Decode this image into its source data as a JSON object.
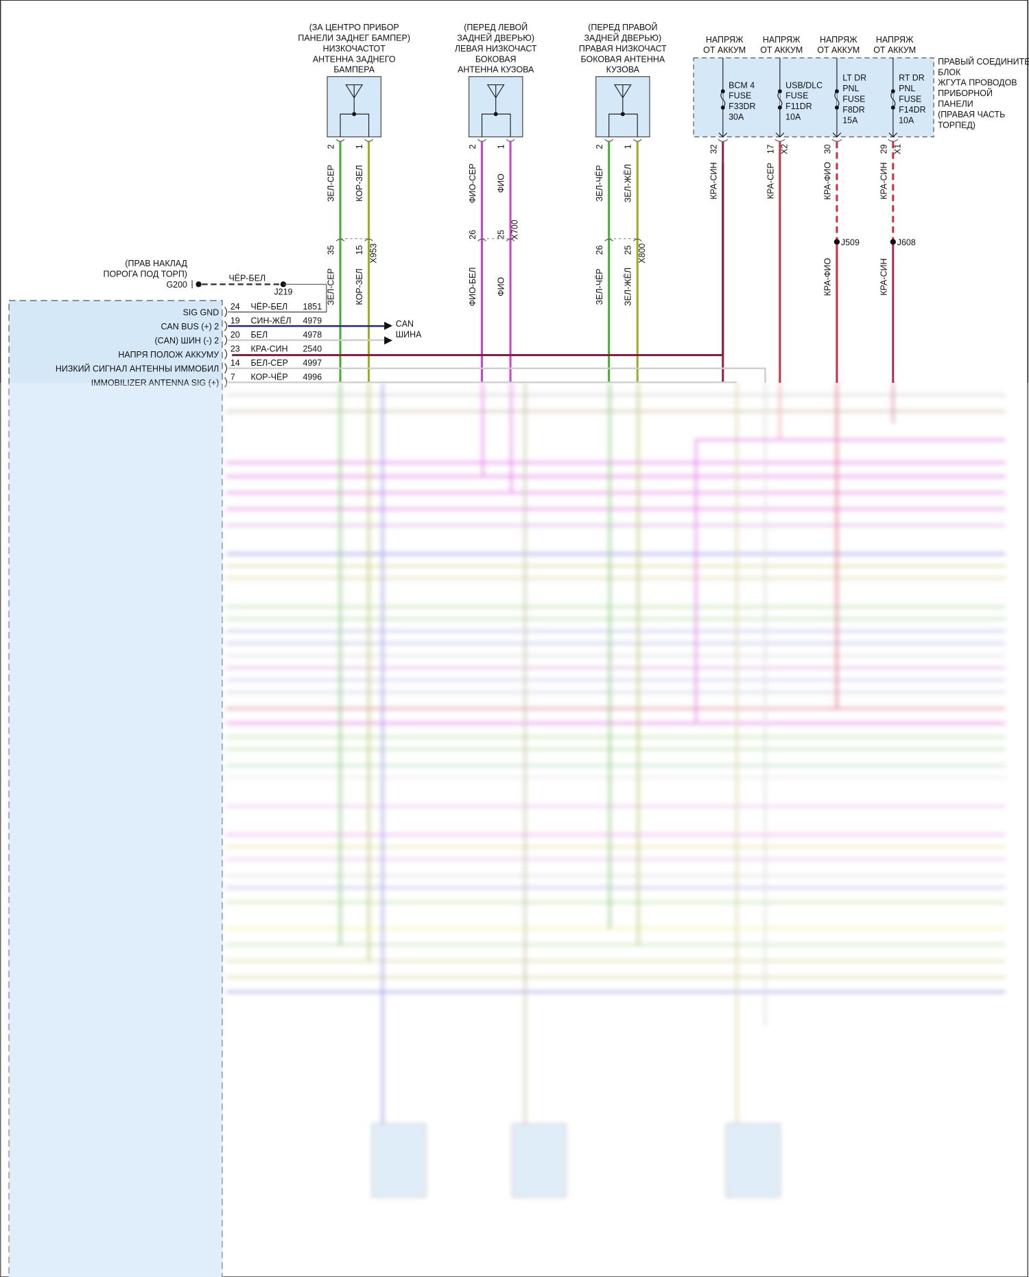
{
  "antennas": [
    {
      "lines": [
        "(ЗА ЦЕНТРО ПРИБОР",
        "ПАНЕЛИ ЗАДНЕГ БАМПЕР)",
        "НИЗКОЧАСТОТ",
        "АНТЕННА ЗАДНЕГО",
        "БАМПЕРА"
      ],
      "pins": [
        "2",
        "1"
      ],
      "wires_top": [
        "ЗЕЛ-СЕР",
        "КОР-ЗЕЛ"
      ],
      "conn_pins": [
        "35",
        "15"
      ],
      "connector": "X953",
      "wires_bottom": [
        "ЗЕЛ-СЕР",
        "КОР-ЗЕЛ"
      ]
    },
    {
      "lines": [
        "(ПЕРЕД ЛЕВОЙ",
        "ЗАДНЕЙ ДВЕРЬЮ)",
        "ЛЕВАЯ НИЗКОЧАСТ",
        "БОКОВАЯ",
        "АНТЕННА КУЗОВА"
      ],
      "pins": [
        "2",
        "1"
      ],
      "wires_top": [
        "ФИО-СЕР",
        "ФИО"
      ],
      "conn_pins": [
        "26",
        "25"
      ],
      "connector": "X700",
      "wires_bottom": [
        "ФИО-БЕЛ",
        "ФИО"
      ]
    },
    {
      "lines": [
        "(ПЕРЕД ПРАВОЙ",
        "ЗАДНЕЙ ДВЕРЬЮ)",
        "ПРАВАЯ НИЗКОЧАСТ",
        "БОКОВАЯ АНТЕННА",
        "КУЗОВА"
      ],
      "pins": [
        "2",
        "1"
      ],
      "wires_top": [
        "ЗЕЛ-ЧЁР",
        "ЗЕЛ-ЖЁЛ"
      ],
      "conn_pins": [
        "26",
        "25"
      ],
      "connector": "X800",
      "wires_bottom": [
        "ЗЕЛ-ЧЁР",
        "ЗЕЛ-ЖЁЛ"
      ]
    }
  ],
  "fuse_box": {
    "label_lines": [
      "ПРАВЫЙ СОЕДИНИТЕ",
      "БЛОК",
      "ЖГУТА ПРОВОДОВ",
      "ПРИБОРНОЙ",
      "ПАНЕЛИ",
      "(ПРАВАЯ ЧАСТЬ",
      "ТОРПЕД)"
    ],
    "fuses": [
      {
        "supply": [
          "НАПРЯЖ",
          "ОТ АККУМ"
        ],
        "lines": [
          "BCM 4",
          "FUSE",
          "F33DR",
          "30A"
        ],
        "pin": "32",
        "connector": "",
        "wire": "КРА-СИН",
        "splice": "",
        "wire2": ""
      },
      {
        "supply": [
          "НАПРЯЖ",
          "ОТ АККУМ"
        ],
        "lines": [
          "USB/DLC",
          "FUSE",
          "F11DR",
          "10A"
        ],
        "pin": "17",
        "connector": "X2",
        "wire": "КРА-СЕР",
        "splice": "",
        "wire2": ""
      },
      {
        "supply": [
          "НАПРЯЖ",
          "ОТ АККУМ"
        ],
        "lines": [
          "LT DR",
          "PNL",
          "FUSE",
          "F8DR",
          "15A"
        ],
        "pin": "30",
        "connector": "",
        "wire": "КРА-ФИО",
        "splice": "J509",
        "wire2": "КРА-ФИО"
      },
      {
        "supply": [
          "НАПРЯЖ",
          "ОТ АККУМ"
        ],
        "lines": [
          "RT DR",
          "PNL",
          "FUSE",
          "F14DR",
          "10A"
        ],
        "pin": "29",
        "connector": "X1",
        "wire": "КРА-СИН",
        "splice": "J608",
        "wire2": "КРА-СИН"
      }
    ]
  },
  "ground": {
    "lines": [
      "(ПРАВ НАКЛАД",
      "ПОРОГА ПОД ТОРП)"
    ],
    "id": "G200",
    "wire": "ЧЁР-БЕЛ",
    "splice": "J219"
  },
  "module": {
    "rows": [
      {
        "label": "SIG GND",
        "pin": "24",
        "wire": "ЧЁР-БЕЛ",
        "circuit": "1851"
      },
      {
        "label": "CAN BUS (+) 2",
        "pin": "19",
        "wire": "СИН-ЖЁЛ",
        "circuit": "4979"
      },
      {
        "label": "(CAN) ШИН (-) 2",
        "pin": "20",
        "wire": "БЕЛ",
        "circuit": "4978"
      },
      {
        "label": "НАПРЯ ПОЛОЖ АККУМУ",
        "pin": "23",
        "wire": "КРА-СИН",
        "circuit": "2540"
      },
      {
        "label": "НИЗКИЙ СИГНАЛ АНТЕННЫ ИММОБИЛ",
        "pin": "14",
        "wire": "БЕЛ-СЕР",
        "circuit": "4997"
      },
      {
        "label": "IMMOBILIZER ANTENNA SIG (+)",
        "pin": "7",
        "wire": "КОР-ЧЁР",
        "circuit": "4996"
      }
    ]
  },
  "can_bus": {
    "lines": [
      "CAN",
      "ШИНА"
    ]
  },
  "colors": {
    "green": "#3fae2a",
    "olive": "#9bab1c",
    "magenta": "#d43bd4",
    "blue": "#1c1c9c",
    "red": "#d0283c",
    "darkred": "#8a1c44",
    "gray": "#bdbdbd",
    "module_fill": "#d5e8f8"
  }
}
